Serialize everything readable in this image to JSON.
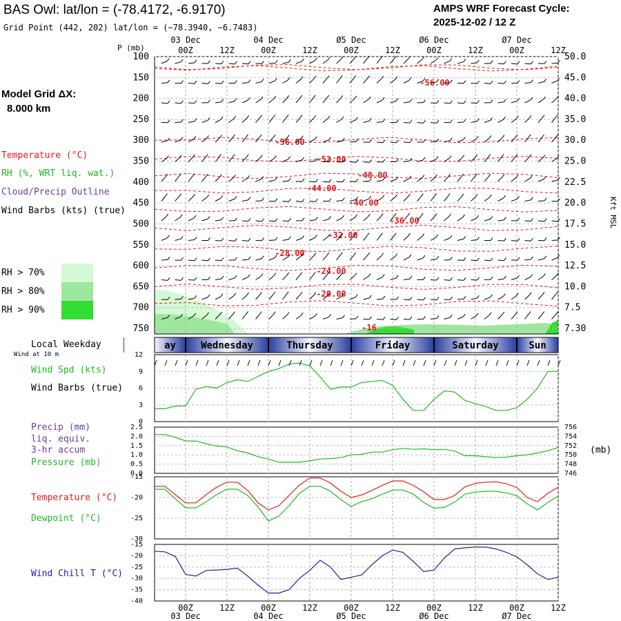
{
  "header": {
    "title": "BAS Owl:  lat/lon = (-78.4172, -6.9170)",
    "subtitle": "Grid Point (442, 202) lat/lon = (−78.3940, −6.7483)",
    "cycle_line1": "AMPS WRF Forecast Cycle:",
    "cycle_line2": "2025-12-02 / 12  Z"
  },
  "legend": {
    "grid_line1": "Model Grid ΔX:",
    "grid_line2": "8.000 km",
    "temperature": "Temperature (°C)",
    "rh": "RH (%, WRT liq. wat.)",
    "cloud": "Cloud/Precip Outline",
    "wind": "Wind Barbs (kts) (true)",
    "rh70": "RH > 70%",
    "rh80": "RH > 80%",
    "rh90": "RH > 90%",
    "colors": {
      "rh70": "#d4f9d4",
      "rh80": "#9ee79e",
      "rh90": "#33dd33"
    }
  },
  "panel_labels": {
    "local_weekday": "Local Weekday",
    "wind_at": "Wind at 10 m",
    "wind_spd": "Wind Spd (kts)",
    "wind_barbs": "Wind Barbs (true)",
    "precip1": "Precip (mm)",
    "precip2": "liq. equiv.",
    "precip3": "3-hr accum",
    "pressure": "Pressure (mb)",
    "pressure_unit": "(mb)",
    "temperature": "Temperature (°C)",
    "dewpoint": "Dewpoint (°C)",
    "wind_chill": "Wind Chill T (°C)"
  },
  "chart_data": [
    {
      "type": "line",
      "panel": "upper-air",
      "x_ticks": [
        "00Z",
        "12Z",
        "00Z",
        "12Z",
        "00Z",
        "12Z",
        "00Z",
        "12Z",
        "00Z",
        "12Z"
      ],
      "x_days": [
        "03 Dec",
        "04 Dec",
        "Ø5 Dec",
        "Ø6 Dec",
        "Ø7 Dec"
      ],
      "ylabel": "P (mb)",
      "y_ticks": [
        100,
        150,
        200,
        250,
        300,
        350,
        400,
        450,
        500,
        550,
        600,
        650,
        700,
        750
      ],
      "y2label": "Kft MSL",
      "y2_ticks": [
        "50.0",
        "45.0",
        "40.0",
        "35.0",
        "30.0",
        "25.0",
        "22.5",
        "20.0",
        "17.5",
        "15.0",
        "12.5",
        "10.0",
        "7.5",
        "7.30"
      ],
      "isotherm_labels": [
        "-56.00",
        "-56.00",
        "-52.00",
        "-48.00",
        "-44.00",
        "-40.00",
        "-36.00",
        "-32.00",
        "-28.00",
        "-24.00",
        "-20.00",
        "-16"
      ],
      "isotherm_values": [
        -56,
        -56,
        -52,
        -48,
        -44,
        -40,
        -36,
        -32,
        -28,
        -24,
        -20,
        -16
      ]
    },
    {
      "type": "bar",
      "panel": "weekday-band",
      "categories": [
        "ay",
        "Wednesday",
        "Thursday",
        "Friday",
        "Saturday",
        "Sun"
      ]
    },
    {
      "type": "line",
      "panel": "wind-speed",
      "y_ticks": [
        0,
        3,
        6,
        9,
        12
      ],
      "ylim": [
        0,
        12
      ],
      "series": [
        {
          "values": [
            2.3,
            2.3,
            2.8,
            2.8,
            5.8,
            6.3,
            6.0,
            7.0,
            7.5,
            7.2,
            8.1,
            9.0,
            9.5,
            10.3,
            10.5,
            10.0,
            8.0,
            5.8,
            6.2,
            6.2,
            7.0,
            7.2,
            7.4,
            6.5,
            4.0,
            2.0,
            2.0,
            4.0,
            5.5,
            5.3,
            3.8,
            3.2,
            2.7,
            2.0,
            2.0,
            2.5,
            4.0,
            6.0,
            9.0,
            9.0
          ],
          "color": "#21b821"
        }
      ]
    },
    {
      "type": "line",
      "panel": "precip-pressure",
      "y_ticks": [
        "0.0",
        "0.5",
        "1.0",
        "1.5",
        "2.0",
        "2.5"
      ],
      "y2_ticks": [
        "746",
        "748",
        "750",
        "752",
        "754",
        "756"
      ],
      "ylim": [
        0,
        2.5
      ],
      "y2lim": [
        746,
        756
      ],
      "series": [
        {
          "values": [
            754.4,
            754.4,
            753.8,
            753.0,
            753.0,
            752.4,
            751.9,
            751.7,
            750.9,
            750.4,
            749.6,
            749.1,
            748.4,
            748.4,
            748.4,
            748.7,
            749.1,
            749.2,
            749.4,
            750.0,
            750.1,
            750.6,
            750.6,
            751.1,
            751.4,
            751.2,
            751.3,
            751.1,
            751.2,
            750.8,
            749.8,
            749.8,
            749.6,
            749.4,
            749.5,
            749.8,
            750.0,
            750.4,
            750.9,
            751.6
          ],
          "color": "#21b821"
        }
      ]
    },
    {
      "type": "line",
      "panel": "temp-dewpoint",
      "y_ticks": [
        -30,
        -25,
        -20,
        -15
      ],
      "ylim": [
        -30,
        -15
      ],
      "series": [
        {
          "values": [
            -17.3,
            -17.3,
            -19.3,
            -21.3,
            -21.3,
            -19.3,
            -17.5,
            -16.3,
            -16.3,
            -18.3,
            -21.3,
            -23.0,
            -22.0,
            -19.5,
            -17.0,
            -15.3,
            -15.3,
            -16.5,
            -18.5,
            -20.0,
            -19.4,
            -18.3,
            -17.1,
            -16.0,
            -16.0,
            -17.1,
            -18.6,
            -20.5,
            -20.5,
            -19.5,
            -17.4,
            -16.6,
            -16.3,
            -16.2,
            -16.7,
            -17.6,
            -20.0,
            -21.0,
            -19.0,
            -17.5
          ],
          "color": "#e41a1c"
        },
        {
          "values": [
            -18.0,
            -18.0,
            -20.3,
            -22.5,
            -22.5,
            -21.0,
            -19.3,
            -18.0,
            -18.0,
            -19.5,
            -22.3,
            -25.7,
            -24.5,
            -22.0,
            -19.0,
            -17.3,
            -17.3,
            -18.5,
            -20.5,
            -22.2,
            -21.0,
            -20.3,
            -19.2,
            -18.2,
            -18.2,
            -19.2,
            -21.2,
            -22.6,
            -22.4,
            -21.1,
            -19.2,
            -18.7,
            -18.5,
            -18.5,
            -18.9,
            -19.6,
            -21.5,
            -23.0,
            -21.2,
            -19.7
          ],
          "color": "#21b821"
        }
      ]
    },
    {
      "type": "line",
      "panel": "wind-chill",
      "y_ticks": [
        -40,
        -35,
        -30,
        -25,
        -20,
        -15
      ],
      "ylim": [
        -40,
        -15
      ],
      "series": [
        {
          "values": [
            -18.0,
            -18.3,
            -20.3,
            -28.3,
            -29.0,
            -26.5,
            -26.3,
            -26.0,
            -25.5,
            -29.0,
            -33.0,
            -36.5,
            -36.5,
            -35.0,
            -30.0,
            -26.5,
            -22.0,
            -25.0,
            -30.5,
            -29.5,
            -28.5,
            -24.0,
            -20.0,
            -17.5,
            -18.5,
            -22.5,
            -27.0,
            -26.3,
            -21.0,
            -17.0,
            -16.5,
            -16.2,
            -16.2,
            -17.0,
            -18.5,
            -20.5,
            -24.0,
            -28.0,
            -30.5,
            -29.5
          ],
          "color": "#1f1fa0"
        }
      ]
    }
  ]
}
